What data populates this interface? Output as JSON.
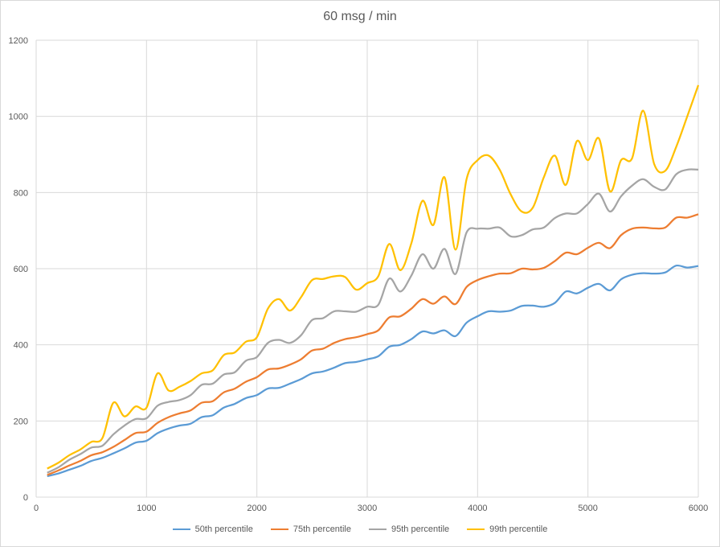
{
  "chart_data": {
    "type": "line",
    "title": "60 msg / min",
    "xlabel": "",
    "ylabel": "",
    "xlim": [
      0,
      6000
    ],
    "ylim": [
      0,
      1200
    ],
    "x_ticks": [
      0,
      1000,
      2000,
      3000,
      4000,
      5000,
      6000
    ],
    "y_ticks": [
      0,
      200,
      400,
      600,
      800,
      1000,
      1200
    ],
    "grid": "vertical and horizontal",
    "legend_position": "bottom",
    "x": [
      100,
      200,
      300,
      400,
      500,
      600,
      700,
      800,
      900,
      1000,
      1100,
      1200,
      1300,
      1400,
      1500,
      1600,
      1700,
      1800,
      1900,
      2000,
      2100,
      2200,
      2300,
      2400,
      2500,
      2600,
      2700,
      2800,
      2900,
      3000,
      3100,
      3200,
      3300,
      3400,
      3500,
      3600,
      3700,
      3800,
      3900,
      4000,
      4100,
      4200,
      4300,
      4400,
      4500,
      4600,
      4700,
      4800,
      4900,
      5000,
      5100,
      5200,
      5300,
      5400,
      5500,
      5600,
      5700,
      5800,
      5900,
      6000
    ],
    "series": [
      {
        "name": "50th percentile",
        "color": "#5b9bd5",
        "values": [
          55,
          62,
          72,
          82,
          95,
          103,
          115,
          128,
          143,
          148,
          168,
          180,
          188,
          193,
          210,
          215,
          235,
          245,
          260,
          268,
          285,
          287,
          298,
          310,
          325,
          330,
          340,
          352,
          355,
          362,
          370,
          395,
          400,
          415,
          435,
          430,
          438,
          423,
          458,
          475,
          488,
          487,
          490,
          502,
          503,
          500,
          510,
          540,
          535,
          550,
          560,
          543,
          572,
          584,
          588,
          587,
          590,
          608,
          603,
          607
        ]
      },
      {
        "name": "75th percentile",
        "color": "#ed7d31",
        "values": [
          58,
          70,
          83,
          95,
          110,
          118,
          132,
          150,
          168,
          172,
          195,
          210,
          220,
          228,
          248,
          252,
          275,
          285,
          303,
          315,
          335,
          338,
          348,
          362,
          385,
          390,
          405,
          415,
          420,
          428,
          438,
          472,
          475,
          495,
          520,
          508,
          527,
          507,
          552,
          570,
          580,
          587,
          588,
          600,
          598,
          602,
          620,
          642,
          638,
          655,
          668,
          654,
          688,
          705,
          708,
          706,
          708,
          734,
          734,
          743
        ]
      },
      {
        "name": "95th percentile",
        "color": "#a5a5a5",
        "values": [
          64,
          78,
          98,
          113,
          130,
          135,
          165,
          188,
          205,
          207,
          240,
          250,
          255,
          268,
          295,
          298,
          322,
          328,
          358,
          368,
          405,
          413,
          405,
          425,
          465,
          470,
          488,
          488,
          487,
          500,
          505,
          574,
          540,
          582,
          638,
          600,
          652,
          586,
          695,
          705,
          705,
          708,
          685,
          688,
          703,
          708,
          733,
          745,
          745,
          770,
          797,
          750,
          790,
          818,
          835,
          815,
          808,
          848,
          860,
          860
        ]
      },
      {
        "name": "99th percentile",
        "color": "#ffc000",
        "values": [
          75,
          90,
          110,
          125,
          145,
          155,
          248,
          212,
          238,
          235,
          325,
          280,
          290,
          305,
          325,
          333,
          373,
          380,
          408,
          420,
          495,
          520,
          490,
          525,
          570,
          573,
          580,
          578,
          545,
          562,
          580,
          665,
          596,
          667,
          778,
          715,
          840,
          650,
          835,
          885,
          897,
          860,
          795,
          750,
          760,
          840,
          897,
          820,
          935,
          885,
          942,
          803,
          885,
          890,
          1015,
          875,
          857,
          920,
          1000,
          1082
        ]
      }
    ]
  }
}
